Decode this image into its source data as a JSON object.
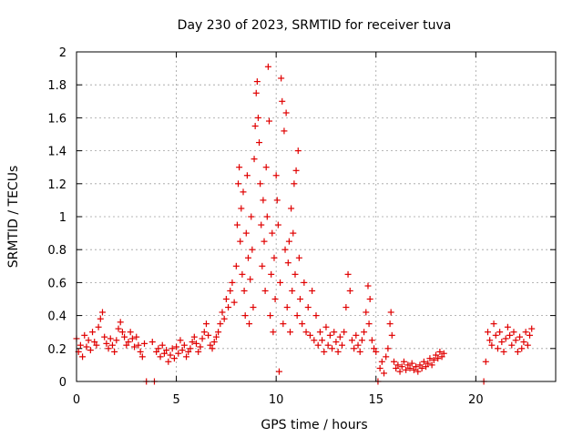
{
  "chart_data": {
    "type": "scatter",
    "title": "Day 230 of 2023, SRMTID for receiver tuva",
    "xlabel": "GPS time / hours",
    "ylabel": "SRMTID / TECUs",
    "xlim": [
      0,
      24
    ],
    "ylim": [
      0,
      2
    ],
    "grid": true,
    "x_ticks": [
      0,
      5,
      10,
      15,
      20
    ],
    "x_tick_labels": [
      "0",
      "5",
      "10",
      "15",
      "20"
    ],
    "y_ticks": [
      0,
      0.2,
      0.4,
      0.6,
      0.8,
      1,
      1.2,
      1.4,
      1.6,
      1.8,
      2
    ],
    "y_tick_labels": [
      "0",
      "0.2",
      "0.4",
      "0.6",
      "0.8",
      "1",
      "1.2",
      "1.4",
      "1.6",
      "1.8",
      "2"
    ],
    "marker": "plus",
    "color": "#e00000",
    "series": [
      {
        "name": "SRMTID",
        "points": [
          [
            0.0,
            0.26
          ],
          [
            0.1,
            0.18
          ],
          [
            0.2,
            0.22
          ],
          [
            0.3,
            0.15
          ],
          [
            0.4,
            0.28
          ],
          [
            0.5,
            0.21
          ],
          [
            0.6,
            0.25
          ],
          [
            0.7,
            0.19
          ],
          [
            0.8,
            0.3
          ],
          [
            0.9,
            0.24
          ],
          [
            1.0,
            0.22
          ],
          [
            1.1,
            0.33
          ],
          [
            1.2,
            0.38
          ],
          [
            1.3,
            0.42
          ],
          [
            1.4,
            0.27
          ],
          [
            1.5,
            0.23
          ],
          [
            1.6,
            0.2
          ],
          [
            1.7,
            0.26
          ],
          [
            1.8,
            0.22
          ],
          [
            1.9,
            0.18
          ],
          [
            2.0,
            0.25
          ],
          [
            2.1,
            0.32
          ],
          [
            2.2,
            0.36
          ],
          [
            2.3,
            0.3
          ],
          [
            2.4,
            0.27
          ],
          [
            2.5,
            0.22
          ],
          [
            2.6,
            0.24
          ],
          [
            2.7,
            0.3
          ],
          [
            2.8,
            0.26
          ],
          [
            2.9,
            0.21
          ],
          [
            3.0,
            0.27
          ],
          [
            3.1,
            0.22
          ],
          [
            3.2,
            0.18
          ],
          [
            3.3,
            0.15
          ],
          [
            3.4,
            0.23
          ],
          [
            3.5,
            0.0
          ],
          [
            3.8,
            0.24
          ],
          [
            3.9,
            0.0
          ],
          [
            4.0,
            0.18
          ],
          [
            4.1,
            0.2
          ],
          [
            4.2,
            0.15
          ],
          [
            4.3,
            0.22
          ],
          [
            4.4,
            0.17
          ],
          [
            4.5,
            0.19
          ],
          [
            4.6,
            0.12
          ],
          [
            4.7,
            0.16
          ],
          [
            4.8,
            0.2
          ],
          [
            4.9,
            0.14
          ],
          [
            5.0,
            0.21
          ],
          [
            5.1,
            0.17
          ],
          [
            5.2,
            0.25
          ],
          [
            5.3,
            0.19
          ],
          [
            5.4,
            0.22
          ],
          [
            5.5,
            0.15
          ],
          [
            5.6,
            0.18
          ],
          [
            5.7,
            0.2
          ],
          [
            5.8,
            0.24
          ],
          [
            5.9,
            0.27
          ],
          [
            6.0,
            0.23
          ],
          [
            6.1,
            0.18
          ],
          [
            6.2,
            0.21
          ],
          [
            6.3,
            0.26
          ],
          [
            6.4,
            0.3
          ],
          [
            6.5,
            0.35
          ],
          [
            6.6,
            0.28
          ],
          [
            6.7,
            0.22
          ],
          [
            6.8,
            0.2
          ],
          [
            6.9,
            0.24
          ],
          [
            7.0,
            0.27
          ],
          [
            7.1,
            0.3
          ],
          [
            7.2,
            0.35
          ],
          [
            7.3,
            0.42
          ],
          [
            7.4,
            0.38
          ],
          [
            7.5,
            0.5
          ],
          [
            7.6,
            0.45
          ],
          [
            7.7,
            0.55
          ],
          [
            7.8,
            0.6
          ],
          [
            7.9,
            0.48
          ],
          [
            8.0,
            0.7
          ],
          [
            8.05,
            0.95
          ],
          [
            8.1,
            1.2
          ],
          [
            8.15,
            1.3
          ],
          [
            8.2,
            0.85
          ],
          [
            8.25,
            1.05
          ],
          [
            8.3,
            0.65
          ],
          [
            8.35,
            1.15
          ],
          [
            8.4,
            0.55
          ],
          [
            8.45,
            0.4
          ],
          [
            8.5,
            0.9
          ],
          [
            8.55,
            1.25
          ],
          [
            8.6,
            0.75
          ],
          [
            8.65,
            0.35
          ],
          [
            8.7,
            0.62
          ],
          [
            8.75,
            1.0
          ],
          [
            8.8,
            0.8
          ],
          [
            8.85,
            0.45
          ],
          [
            8.9,
            1.35
          ],
          [
            8.95,
            1.55
          ],
          [
            9.0,
            1.75
          ],
          [
            9.05,
            1.82
          ],
          [
            9.1,
            1.6
          ],
          [
            9.15,
            1.45
          ],
          [
            9.2,
            1.2
          ],
          [
            9.25,
            0.95
          ],
          [
            9.3,
            0.7
          ],
          [
            9.35,
            1.1
          ],
          [
            9.4,
            0.85
          ],
          [
            9.45,
            0.55
          ],
          [
            9.5,
            1.3
          ],
          [
            9.55,
            1.0
          ],
          [
            9.6,
            1.91
          ],
          [
            9.65,
            1.58
          ],
          [
            9.7,
            0.4
          ],
          [
            9.75,
            0.65
          ],
          [
            9.8,
            0.9
          ],
          [
            9.85,
            0.3
          ],
          [
            9.9,
            0.75
          ],
          [
            9.95,
            0.5
          ],
          [
            10.0,
            1.25
          ],
          [
            10.05,
            1.1
          ],
          [
            10.1,
            0.95
          ],
          [
            10.15,
            0.06
          ],
          [
            10.2,
            0.6
          ],
          [
            10.25,
            1.84
          ],
          [
            10.3,
            1.7
          ],
          [
            10.35,
            0.35
          ],
          [
            10.4,
            1.52
          ],
          [
            10.45,
            0.8
          ],
          [
            10.5,
            1.63
          ],
          [
            10.55,
            0.45
          ],
          [
            10.6,
            0.72
          ],
          [
            10.65,
            0.85
          ],
          [
            10.7,
            0.3
          ],
          [
            10.75,
            1.05
          ],
          [
            10.8,
            0.55
          ],
          [
            10.85,
            0.9
          ],
          [
            10.9,
            1.2
          ],
          [
            10.95,
            0.65
          ],
          [
            11.0,
            1.28
          ],
          [
            11.05,
            0.4
          ],
          [
            11.1,
            1.4
          ],
          [
            11.15,
            0.75
          ],
          [
            11.2,
            0.5
          ],
          [
            11.3,
            0.35
          ],
          [
            11.4,
            0.6
          ],
          [
            11.5,
            0.3
          ],
          [
            11.6,
            0.45
          ],
          [
            11.7,
            0.28
          ],
          [
            11.8,
            0.55
          ],
          [
            11.9,
            0.25
          ],
          [
            12.0,
            0.4
          ],
          [
            12.1,
            0.22
          ],
          [
            12.2,
            0.3
          ],
          [
            12.3,
            0.25
          ],
          [
            12.4,
            0.18
          ],
          [
            12.5,
            0.33
          ],
          [
            12.6,
            0.22
          ],
          [
            12.7,
            0.28
          ],
          [
            12.8,
            0.2
          ],
          [
            12.9,
            0.3
          ],
          [
            13.0,
            0.24
          ],
          [
            13.1,
            0.18
          ],
          [
            13.2,
            0.27
          ],
          [
            13.3,
            0.22
          ],
          [
            13.4,
            0.3
          ],
          [
            13.5,
            0.45
          ],
          [
            13.6,
            0.65
          ],
          [
            13.7,
            0.55
          ],
          [
            13.8,
            0.25
          ],
          [
            13.9,
            0.2
          ],
          [
            14.0,
            0.28
          ],
          [
            14.1,
            0.22
          ],
          [
            14.2,
            0.18
          ],
          [
            14.3,
            0.25
          ],
          [
            14.4,
            0.3
          ],
          [
            14.5,
            0.42
          ],
          [
            14.6,
            0.58
          ],
          [
            14.65,
            0.35
          ],
          [
            14.7,
            0.5
          ],
          [
            14.8,
            0.25
          ],
          [
            14.9,
            0.2
          ],
          [
            15.0,
            0.18
          ],
          [
            15.1,
            0.0
          ],
          [
            15.2,
            0.08
          ],
          [
            15.3,
            0.12
          ],
          [
            15.4,
            0.05
          ],
          [
            15.5,
            0.15
          ],
          [
            15.6,
            0.2
          ],
          [
            15.7,
            0.35
          ],
          [
            15.75,
            0.42
          ],
          [
            15.8,
            0.28
          ],
          [
            15.9,
            0.12
          ],
          [
            16.0,
            0.08
          ],
          [
            16.1,
            0.1
          ],
          [
            16.2,
            0.06
          ],
          [
            16.3,
            0.09
          ],
          [
            16.4,
            0.12
          ],
          [
            16.5,
            0.07
          ],
          [
            16.6,
            0.1
          ],
          [
            16.7,
            0.08
          ],
          [
            16.8,
            0.11
          ],
          [
            16.9,
            0.07
          ],
          [
            17.0,
            0.09
          ],
          [
            17.1,
            0.06
          ],
          [
            17.2,
            0.1
          ],
          [
            17.3,
            0.08
          ],
          [
            17.4,
            0.12
          ],
          [
            17.5,
            0.09
          ],
          [
            17.6,
            0.11
          ],
          [
            17.7,
            0.14
          ],
          [
            17.8,
            0.1
          ],
          [
            17.9,
            0.13
          ],
          [
            18.0,
            0.16
          ],
          [
            18.1,
            0.14
          ],
          [
            18.2,
            0.18
          ],
          [
            18.3,
            0.15
          ],
          [
            18.4,
            0.17
          ],
          [
            20.4,
            0.0
          ],
          [
            20.5,
            0.12
          ],
          [
            20.6,
            0.3
          ],
          [
            20.7,
            0.25
          ],
          [
            20.8,
            0.22
          ],
          [
            20.9,
            0.35
          ],
          [
            21.0,
            0.28
          ],
          [
            21.1,
            0.2
          ],
          [
            21.2,
            0.3
          ],
          [
            21.3,
            0.24
          ],
          [
            21.4,
            0.18
          ],
          [
            21.5,
            0.26
          ],
          [
            21.6,
            0.33
          ],
          [
            21.7,
            0.28
          ],
          [
            21.8,
            0.22
          ],
          [
            21.9,
            0.3
          ],
          [
            22.0,
            0.25
          ],
          [
            22.1,
            0.18
          ],
          [
            22.2,
            0.27
          ],
          [
            22.3,
            0.2
          ],
          [
            22.4,
            0.24
          ],
          [
            22.5,
            0.3
          ],
          [
            22.6,
            0.22
          ],
          [
            22.7,
            0.28
          ],
          [
            22.8,
            0.32
          ]
        ]
      }
    ]
  }
}
